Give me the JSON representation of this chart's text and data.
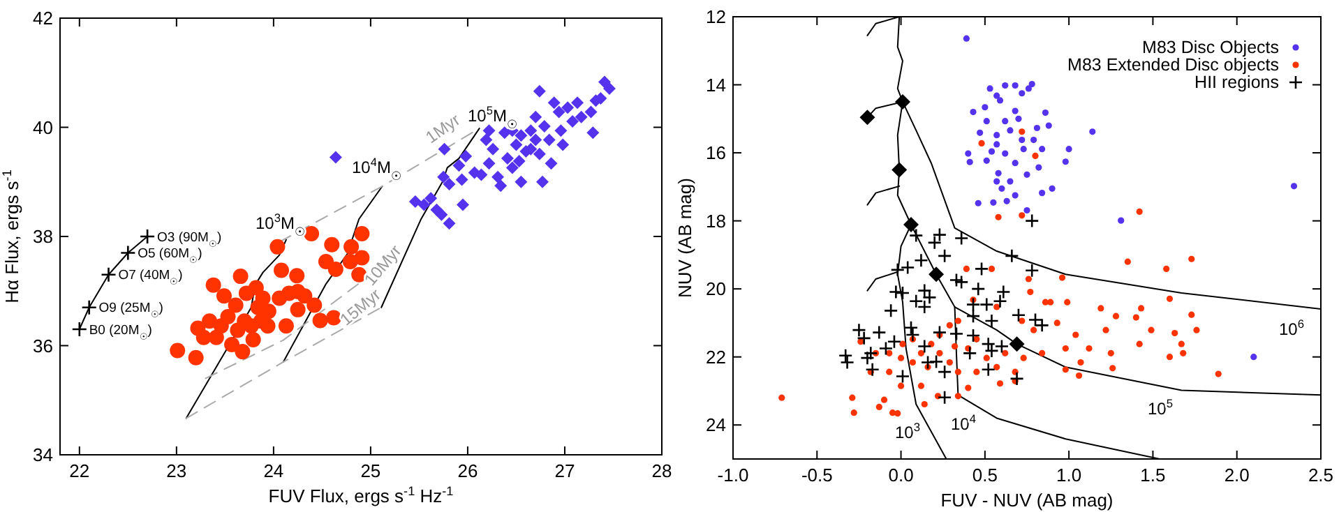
{
  "chart_data": [
    {
      "type": "scatter",
      "xlabel": "FUV Flux, ergs s$^{-1}$ Hz$^{-1}$",
      "ylabel": "Hα Flux, ergs s$^{-1}$",
      "xlim": [
        21.8,
        28
      ],
      "ylim": [
        34,
        42
      ],
      "xticks": [
        22,
        23,
        24,
        25,
        26,
        27,
        28
      ],
      "yticks": [
        34,
        36,
        38,
        40,
        42
      ],
      "series": [
        {
          "type": "line",
          "color": "#000000",
          "x": [
            22.0,
            22.1,
            22.3,
            22.5,
            22.7
          ],
          "values": [
            36.3,
            36.7,
            37.3,
            37.7,
            38.0
          ],
          "marker": "cross"
        },
        {
          "type": "line",
          "color": "#000000",
          "x": [
            23.1,
            23.77,
            23.81,
            23.89,
            24.06,
            24.13
          ],
          "values": [
            34.67,
            36.7,
            37.11,
            37.34,
            37.66,
            37.94
          ]
        },
        {
          "type": "line",
          "color": "#000000",
          "x": [
            24.1,
            24.54,
            24.76,
            24.88,
            25.12
          ],
          "values": [
            35.7,
            37.13,
            37.68,
            38.32,
            38.92
          ]
        },
        {
          "type": "line",
          "color": "#000000",
          "x": [
            25.11,
            25.52,
            25.74,
            25.79,
            25.91,
            26.12
          ],
          "values": [
            36.7,
            38.32,
            39.0,
            39.26,
            39.43,
            39.98
          ]
        },
        {
          "type": "line",
          "color": "#aaaaaa",
          "line_style": "dashed",
          "x": [
            24.06,
            25.12,
            26.12
          ],
          "values": [
            37.9,
            38.92,
            39.98
          ]
        },
        {
          "type": "line",
          "color": "#aaaaaa",
          "line_style": "dashed",
          "x": [
            23.3,
            24.1,
            25.3
          ],
          "values": [
            35.4,
            36.1,
            37.7
          ]
        },
        {
          "type": "line",
          "color": "#aaaaaa",
          "line_style": "dashed",
          "x": [
            23.1,
            24.1,
            25.11
          ],
          "values": [
            34.67,
            35.7,
            36.7
          ]
        },
        {
          "color": "#ff3300",
          "marker": "circle",
          "x": [
            23.01,
            23.2,
            23.22,
            23.28,
            23.38,
            23.34,
            23.41,
            23.46,
            23.53,
            23.57,
            23.63,
            23.66,
            23.68,
            23.7,
            23.72,
            23.77,
            23.79,
            23.84,
            23.82,
            23.89,
            23.94,
            23.95,
            24.04,
            24.06,
            24.08,
            24.13,
            24.16,
            24.24,
            24.25,
            24.32,
            24.39,
            24.42,
            24.48,
            24.54,
            24.6,
            24.62,
            24.64,
            24.8,
            24.79,
            24.88,
            24.91,
            24.91,
            23.49,
            23.61,
            23.87,
            24.25
          ],
          "values": [
            35.91,
            35.78,
            36.32,
            36.15,
            37.11,
            36.45,
            36.15,
            36.36,
            36.53,
            36.02,
            36.28,
            37.27,
            35.89,
            36.45,
            36.96,
            36.36,
            36.11,
            36.7,
            37.06,
            36.87,
            36.36,
            36.63,
            37.81,
            36.87,
            37.38,
            36.36,
            36.96,
            37.28,
            36.66,
            36.91,
            38.05,
            36.74,
            36.46,
            37.54,
            37.85,
            36.51,
            37.4,
            37.81,
            37.54,
            37.3,
            38.05,
            37.61,
            36.91,
            36.74,
            36.45,
            36.99
          ]
        },
        {
          "color": "#5533ee",
          "marker": "diamond",
          "x": [
            24.64,
            25.46,
            25.55,
            25.62,
            25.68,
            25.73,
            25.81,
            25.76,
            25.75,
            25.81,
            25.95,
            25.91,
            25.98,
            25.94,
            26.07,
            26.14,
            26.19,
            26.22,
            26.26,
            26.31,
            26.34,
            26.38,
            26.41,
            26.46,
            26.5,
            26.53,
            26.55,
            26.6,
            26.65,
            26.7,
            26.74,
            26.74,
            26.77,
            26.79,
            26.84,
            26.89,
            26.86,
            26.94,
            26.96,
            26.98,
            27.03,
            27.08,
            27.13,
            27.17,
            27.27,
            27.29,
            27.32,
            27.37,
            27.41,
            27.46,
            26.55,
            26.7,
            26.46,
            26.22,
            26.65
          ],
          "values": [
            39.45,
            38.64,
            38.58,
            38.7,
            38.49,
            38.4,
            38.24,
            39.6,
            39.09,
            38.96,
            38.58,
            39.3,
            39.47,
            39.04,
            39.17,
            39.13,
            39.77,
            39.34,
            39.6,
            39.09,
            38.93,
            39.9,
            39.43,
            39.26,
            39.68,
            39.38,
            39.85,
            39.56,
            39.94,
            39.77,
            40.66,
            39.51,
            39.0,
            40.02,
            39.77,
            40.45,
            39.34,
            40.28,
            39.94,
            39.68,
            40.36,
            40.11,
            40.45,
            40.19,
            40.28,
            39.9,
            40.49,
            40.53,
            40.83,
            40.71,
            39.0,
            40.19,
            39.94,
            39.94,
            39.6
          ]
        }
      ],
      "annotations": [
        {
          "text": "O3 (90M$_{☉}$)",
          "x": 22.8,
          "y": 38.0
        },
        {
          "text": "O5 (60M$_{☉}$)",
          "x": 22.6,
          "y": 37.7
        },
        {
          "text": "O7 (40M$_{☉}$)",
          "x": 22.4,
          "y": 37.3
        },
        {
          "text": "O9 (25M$_{☉}$)",
          "x": 22.2,
          "y": 36.7
        },
        {
          "text": "B0 (20M$_{☉}$)",
          "x": 22.1,
          "y": 36.3
        },
        "10$^{3}$M$_{☉}$",
        "10$^{4}$M$_{☉}$",
        "10$^{5}$M$_{☉}$",
        "1Myr",
        "10Myr",
        "15Myr"
      ]
    },
    {
      "type": "scatter",
      "xlabel": "FUV - NUV (AB mag)",
      "ylabel": "NUV (AB mag)",
      "xlim": [
        -1,
        2.5
      ],
      "ylim": [
        25,
        12
      ],
      "xticks": [
        {
          "value": -1,
          "label": "-1.0"
        },
        {
          "value": -0.5,
          "label": "-0.5"
        },
        {
          "value": 0,
          "label": "0.0"
        },
        {
          "value": 0.5,
          "label": "0.5"
        },
        {
          "value": 1,
          "label": "1.0"
        },
        {
          "value": 1.5,
          "label": "1.5"
        },
        {
          "value": 2,
          "label": "2.0"
        },
        {
          "value": 2.5,
          "label": "2.5"
        }
      ],
      "yticks": [
        12,
        14,
        16,
        18,
        20,
        22,
        24
      ],
      "legend": "top right",
      "series": [
        {
          "type": "line",
          "color": "#000000",
          "x": [
            -0.01,
            -0.02,
            0.01,
            -0.02,
            0.01,
            0.09,
            0.18,
            0.29,
            0.32,
            0.57,
            0.98,
            1.67,
            2.5
          ],
          "values": [
            12.0,
            12.89,
            13.3,
            14.11,
            14.5,
            15.34,
            16.3,
            17.8,
            18.21,
            18.89,
            19.57,
            20.12,
            20.59
          ]
        },
        {
          "type": "line",
          "color": "#000000",
          "x": [
            0.01,
            -0.02,
            -0.01,
            -0.02,
            0.06,
            0.21,
            0.32,
            0.57,
            0.69,
            0.98,
            1.67,
            2.5
          ],
          "values": [
            14.5,
            15.48,
            16.5,
            17.25,
            18.11,
            19.57,
            20.53,
            21.21,
            21.62,
            22.3,
            22.98,
            23.12
          ]
        },
        {
          "type": "line",
          "color": "#000000",
          "x": [
            0.32,
            0.33,
            0.34,
            0.57,
            0.98,
            1.54
          ],
          "values": [
            20.53,
            21.89,
            23.12,
            23.8,
            24.41,
            25.0
          ]
        },
        {
          "type": "line",
          "color": "#000000",
          "x": [
            0.06,
            0.0,
            -0.02,
            0.01,
            0.03,
            0.09,
            0.27
          ],
          "values": [
            18.11,
            18.75,
            19.57,
            20.39,
            21.75,
            23.39,
            25.0
          ]
        },
        {
          "type": "line",
          "color": "#000000",
          "x": [
            -0.2,
            -0.15,
            -0.01
          ],
          "values": [
            12.55,
            12.2,
            12.0
          ]
        },
        {
          "type": "line",
          "color": "#000000",
          "x": [
            -0.2,
            -0.15,
            0.01
          ],
          "values": [
            14.96,
            14.69,
            14.5
          ]
        },
        {
          "type": "line",
          "color": "#000000",
          "x": [
            -0.2,
            -0.15,
            -0.01
          ],
          "values": [
            17.53,
            17.18,
            16.98
          ]
        },
        {
          "type": "line",
          "color": "#000000",
          "x": [
            -0.2,
            -0.15,
            -0.02
          ],
          "values": [
            20.05,
            19.71,
            19.5
          ]
        },
        {
          "name": "M83 Disc Objects",
          "color": "#5533ee",
          "marker": "circle",
          "x": [
            0.39,
            0.53,
            0.62,
            0.68,
            0.78,
            0.43,
            0.76,
            0.57,
            0.5,
            0.59,
            0.68,
            0.72,
            0.86,
            0.51,
            0.62,
            0.7,
            0.81,
            0.88,
            1.14,
            0.47,
            0.57,
            0.65,
            0.72,
            0.79,
            0.57,
            0.4,
            0.54,
            0.62,
            0.73,
            0.84,
            1.0,
            0.41,
            0.51,
            0.68,
            0.98,
            0.58,
            0.75,
            0.82,
            0.57,
            0.65,
            0.9,
            0.6,
            0.68,
            0.84,
            0.46,
            0.55,
            0.63,
            0.75,
            1.31,
            2.34,
            2.1
          ],
          "values": [
            12.64,
            14.11,
            14.02,
            14.02,
            13.98,
            14.8,
            14.11,
            14.32,
            14.66,
            14.46,
            14.77,
            14.25,
            14.82,
            15.07,
            15.07,
            15.0,
            15.27,
            15.2,
            15.38,
            15.41,
            15.48,
            15.34,
            15.62,
            15.62,
            15.75,
            16.02,
            15.96,
            16.02,
            15.89,
            15.89,
            15.89,
            16.27,
            16.23,
            16.3,
            16.26,
            16.6,
            16.64,
            16.43,
            16.84,
            16.84,
            17.05,
            17.05,
            17.25,
            17.18,
            17.48,
            17.46,
            17.42,
            17.69,
            17.99,
            16.98,
            22.0
          ]
        },
        {
          "name": "M83 Extended Disc objects",
          "color": "#ff3300",
          "marker": "circle",
          "x": [
            -0.71,
            0.58,
            0.72,
            1.42,
            0.8,
            0.48,
            0.72,
            1.35,
            1.73,
            1.58,
            0.96,
            0.39,
            0.54,
            0.76,
            0.77,
            0.86,
            0.89,
            0.99,
            1.6,
            1.19,
            1.43,
            1.28,
            1.4,
            1.73,
            1.76,
            1.49,
            1.22,
            1.63,
            1.04,
            0.93,
            0.79,
            0.72,
            0.57,
            0.43,
            0.34,
            0.29,
            0.23,
            0.18,
            0.12,
            0.07,
            0.01,
            0.23,
            0.32,
            0.4,
            0.45,
            0.51,
            0.62,
            0.73,
            0.84,
            0.98,
            1.12,
            1.25,
            1.42,
            1.67,
            1.6,
            1.68,
            1.07,
            0.98,
            1.26,
            1.06,
            1.89,
            0.68,
            0.57,
            0.45,
            0.4,
            0.34,
            0.29,
            0.59,
            0.68,
            0.16,
            0.12,
            0.22,
            0.34,
            0.07,
            0.0,
            -0.07,
            0.0,
            -0.1,
            -0.13,
            -0.05,
            -0.29,
            -0.28,
            -0.07,
            -0.15,
            -0.24,
            -0.02,
            0.14,
            -0.18
          ],
          "values": [
            23.2,
            17.89,
            17.84,
            17.73,
            16.09,
            15.72,
            15.38,
            19.2,
            19.12,
            19.41,
            19.67,
            19.41,
            19.41,
            19.71,
            20.09,
            20.39,
            20.39,
            20.39,
            20.29,
            20.57,
            20.57,
            20.8,
            20.84,
            20.76,
            21.21,
            21.21,
            21.21,
            21.3,
            21.35,
            21.0,
            21.21,
            20.94,
            20.53,
            20.32,
            20.94,
            21.07,
            21.35,
            21.62,
            21.89,
            21.48,
            21.62,
            21.89,
            21.69,
            21.75,
            21.48,
            22.03,
            21.89,
            22.03,
            21.89,
            21.75,
            21.75,
            21.89,
            21.62,
            21.62,
            22.0,
            21.89,
            22.16,
            22.37,
            22.33,
            22.55,
            22.5,
            22.44,
            22.3,
            22.44,
            22.91,
            22.44,
            22.16,
            22.78,
            22.71,
            22.3,
            22.85,
            23.15,
            23.15,
            22.16,
            22.03,
            21.89,
            22.85,
            23.26,
            23.47,
            23.64,
            23.2,
            23.64,
            22.44,
            21.89,
            21.55,
            23.66,
            23.39,
            22.44
          ]
        },
        {
          "name": "HII regions",
          "color": "#000000",
          "marker": "cross",
          "x": [
            0.78,
            0.66,
            0.78,
            0.23,
            0.36,
            0.2,
            0.26,
            0.09,
            0.12,
            0.04,
            -0.02,
            0.33,
            0.36,
            0.48,
            0.61,
            0.46,
            0.01,
            -0.03,
            0.14,
            0.09,
            0.17,
            0.14,
            0.43,
            0.51,
            0.59,
            0.43,
            0.54,
            0.7,
            0.8,
            0.84,
            -0.06,
            -0.25,
            -0.22,
            -0.13,
            0.06,
            0.07,
            0.23,
            0.33,
            0.43,
            0.52,
            0.6,
            0.54,
            0.41,
            0.14,
            -0.04,
            -0.09,
            -0.18,
            -0.2,
            -0.33,
            -0.32,
            -0.17,
            0.16,
            0.21,
            0.26,
            0.52,
            0.69,
            0.01,
            0.26
          ],
          "values": [
            18.0,
            19.03,
            19.46,
            18.41,
            18.51,
            18.64,
            19.03,
            18.43,
            19.16,
            19.37,
            19.44,
            19.74,
            19.8,
            19.41,
            20.09,
            20.0,
            20.12,
            20.09,
            20.05,
            20.36,
            20.25,
            20.53,
            20.46,
            20.46,
            20.36,
            20.8,
            20.94,
            20.77,
            20.91,
            21.07,
            20.64,
            21.21,
            21.45,
            21.28,
            21.14,
            21.35,
            21.28,
            21.32,
            21.37,
            21.62,
            21.69,
            21.82,
            21.89,
            21.69,
            21.55,
            21.75,
            21.89,
            22.03,
            21.96,
            22.16,
            22.37,
            22.16,
            22.14,
            22.44,
            22.37,
            22.64,
            22.57,
            23.19
          ]
        },
        {
          "color": "#000000",
          "marker": "diamond",
          "x": [
            -0.2,
            0.01,
            -0.01,
            0.06,
            0.21,
            0.69
          ],
          "values": [
            14.96,
            14.5,
            16.5,
            18.11,
            19.57,
            21.62
          ]
        }
      ],
      "annotations": [
        "10$^{3}$",
        "10$^{4}$",
        "10$^{5}$",
        "10$^{6}$"
      ]
    }
  ]
}
